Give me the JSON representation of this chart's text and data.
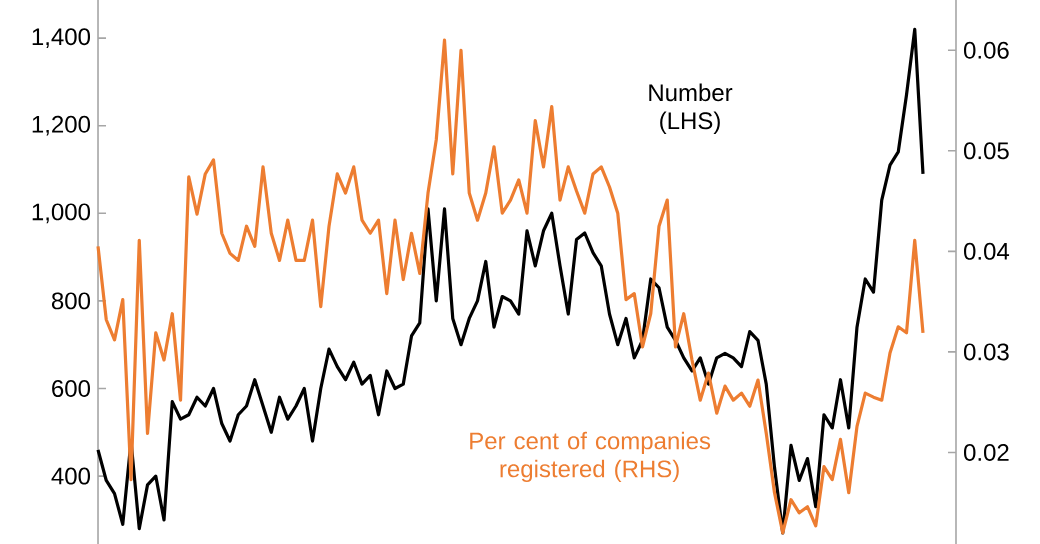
{
  "chart_data": {
    "type": "line",
    "categories": [
      null,
      null,
      null,
      null,
      null,
      null,
      null,
      null,
      null,
      null,
      null,
      null,
      null,
      null,
      null,
      null,
      null,
      null,
      null,
      null,
      null,
      null,
      null,
      null,
      null,
      null,
      null,
      null,
      null,
      null,
      null,
      null,
      null,
      null,
      null,
      null,
      null,
      null,
      null,
      null,
      null,
      null,
      null,
      null,
      null,
      null,
      null,
      null,
      null,
      null,
      null,
      null,
      null,
      null,
      null,
      null,
      null,
      null,
      null,
      null,
      null,
      null,
      null,
      null,
      null,
      null,
      null,
      null,
      null,
      null,
      null,
      null,
      null,
      null,
      null,
      null,
      null,
      null,
      null,
      null,
      null,
      null,
      null,
      null,
      null,
      null,
      null,
      null,
      null,
      null,
      null,
      null,
      null,
      null,
      null,
      null,
      null,
      null,
      null,
      null,
      null
    ],
    "series": [
      {
        "name": "Number (LHS)",
        "color": "#000000",
        "values": [
          460,
          390,
          360,
          290,
          480,
          280,
          380,
          400,
          300,
          570,
          530,
          540,
          580,
          560,
          600,
          520,
          480,
          540,
          560,
          620,
          560,
          500,
          580,
          530,
          560,
          600,
          480,
          600,
          690,
          650,
          620,
          660,
          610,
          630,
          540,
          640,
          600,
          610,
          720,
          750,
          1010,
          800,
          1010,
          760,
          700,
          760,
          800,
          890,
          740,
          810,
          800,
          770,
          960,
          880,
          960,
          1000,
          880,
          770,
          940,
          955,
          910,
          880,
          770,
          700,
          760,
          670,
          710,
          850,
          830,
          740,
          710,
          670,
          640,
          670,
          610,
          670,
          680,
          670,
          650,
          730,
          710,
          610,
          420,
          270,
          470,
          390,
          440,
          330,
          540,
          510,
          620,
          510,
          740,
          850,
          820,
          1030,
          1110,
          1140,
          1270,
          1420,
          1090
        ]
      },
      {
        "name": "Per cent of companies registered (RHS)",
        "color": "#ed7d31",
        "axis": "y2",
        "values": [
          0.0405,
          0.0332,
          0.0312,
          0.0352,
          0.0173,
          0.0411,
          0.0219,
          0.0319,
          0.0292,
          0.0338,
          0.0252,
          0.0474,
          0.0437,
          0.0477,
          0.0491,
          0.0418,
          0.0398,
          0.0391,
          0.0425,
          0.0405,
          0.0484,
          0.0418,
          0.0391,
          0.0431,
          0.0391,
          0.0391,
          0.0431,
          0.0345,
          0.0425,
          0.0477,
          0.0458,
          0.0484,
          0.0431,
          0.0418,
          0.0431,
          0.0358,
          0.0431,
          0.0372,
          0.0418,
          0.0378,
          0.0458,
          0.0511,
          0.061,
          0.0477,
          0.06,
          0.0458,
          0.0431,
          0.0458,
          0.0504,
          0.0438,
          0.0451,
          0.0471,
          0.0438,
          0.053,
          0.0484,
          0.0544,
          0.0451,
          0.0484,
          0.046,
          0.0438,
          0.0477,
          0.0484,
          0.0464,
          0.0438,
          0.0352,
          0.0358,
          0.0305,
          0.0338,
          0.0425,
          0.0451,
          0.0305,
          0.0338,
          0.0292,
          0.0252,
          0.0279,
          0.0239,
          0.0266,
          0.0252,
          0.0259,
          0.0246,
          0.0272,
          0.0219,
          0.016,
          0.012,
          0.0153,
          0.014,
          0.0146,
          0.0127,
          0.0186,
          0.0173,
          0.0213,
          0.016,
          0.0226,
          0.0259,
          0.0255,
          0.0252,
          0.0299,
          0.0325,
          0.0319,
          0.0411,
          0.0319
        ]
      }
    ],
    "ylim": [
      245,
      1487
    ],
    "yticks": [
      {
        "value": 400,
        "label": "400"
      },
      {
        "value": 600,
        "label": "600"
      },
      {
        "value": 800,
        "label": "800"
      },
      {
        "value": 1000,
        "label": "1,000"
      },
      {
        "value": 1200,
        "label": "1,200"
      },
      {
        "value": 1400,
        "label": "1,400"
      }
    ],
    "y2lim": [
      0.0109,
      0.065
    ],
    "y2ticks": [
      {
        "value": 0.02,
        "label": "0.02"
      },
      {
        "value": 0.03,
        "label": "0.03"
      },
      {
        "value": 0.04,
        "label": "0.04"
      },
      {
        "value": 0.05,
        "label": "0.05"
      },
      {
        "value": 0.06,
        "label": "0.06"
      }
    ],
    "tick_labels": "y",
    "marker": "none",
    "line_style": "solid"
  }
}
